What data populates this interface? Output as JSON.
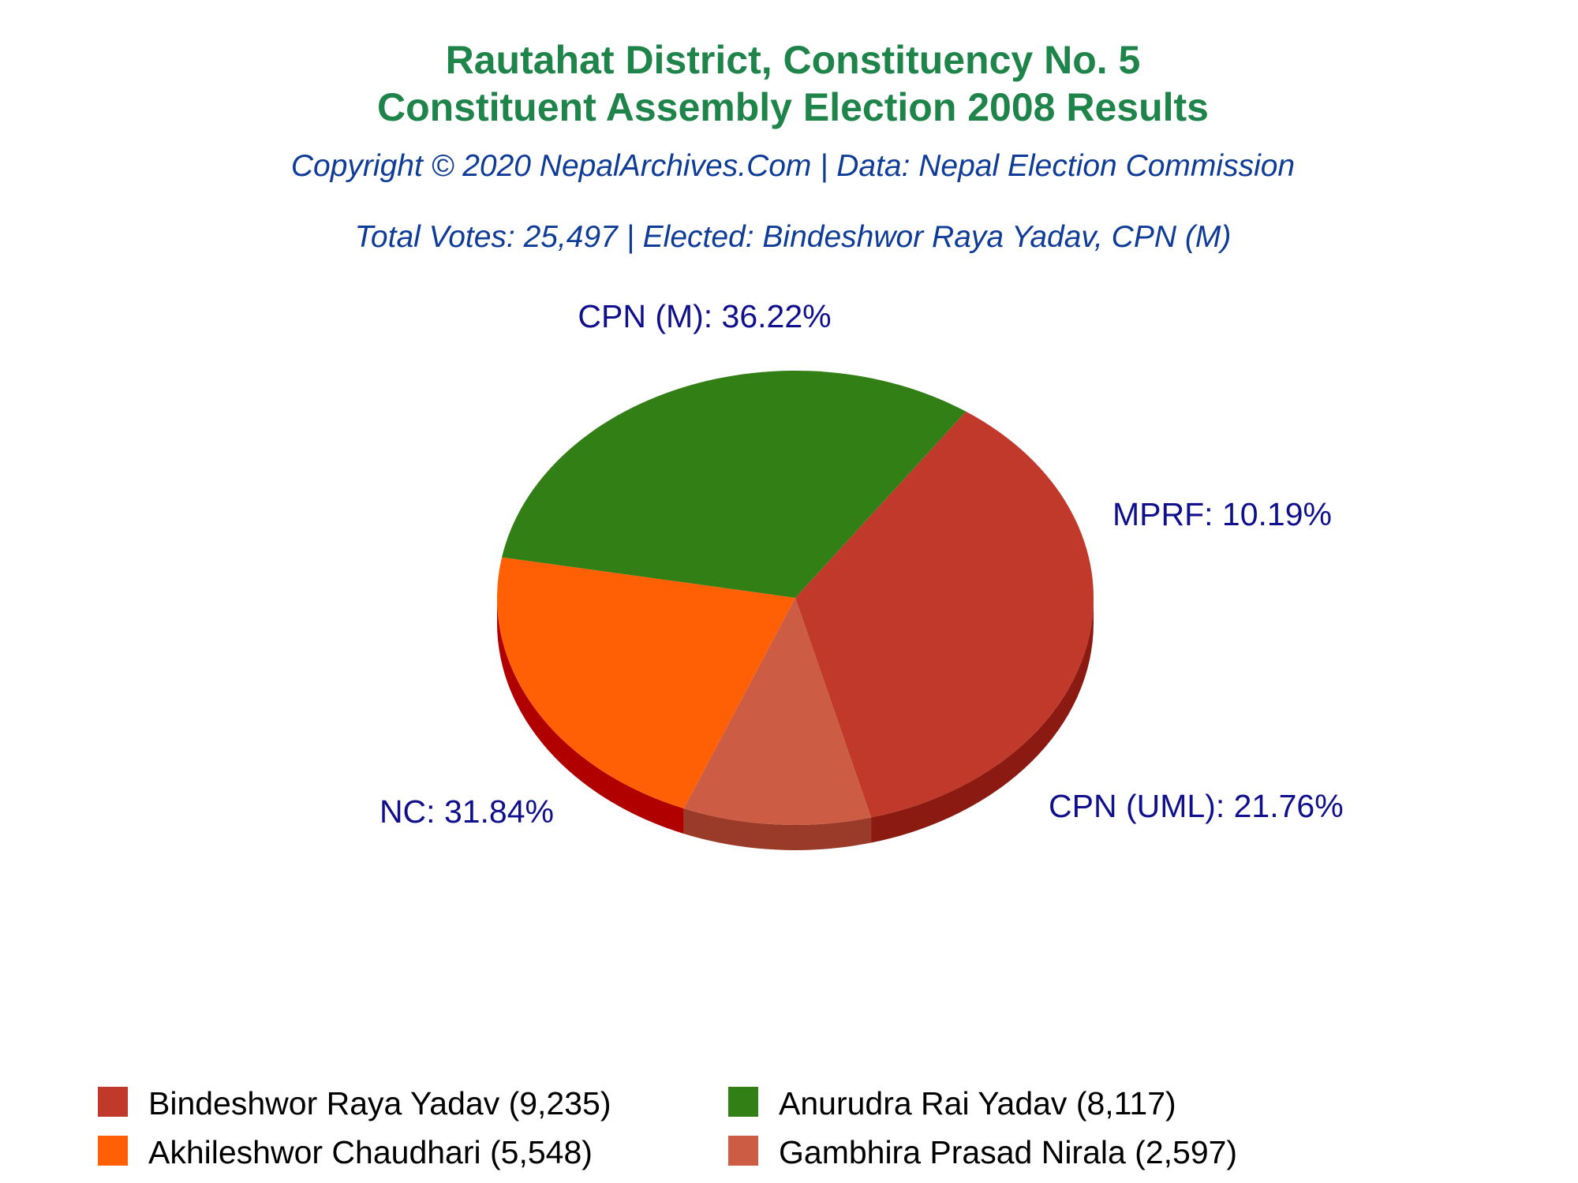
{
  "chart_data": {
    "type": "pie",
    "title_line1": "Rautahat District, Constituency No. 5",
    "title_line2": "Constituent Assembly Election 2008 Results",
    "credit": "Copyright © 2020 NepalArchives.Com | Data: Nepal Election Commission",
    "summary": "Total Votes: 25,497 | Elected: Bindeshwor Raya Yadav, CPN (M)",
    "slices": [
      {
        "party": "CPN (M)",
        "candidate": "Bindeshwor Raya Yadav",
        "votes": 9235,
        "percent": 36.22,
        "label": "CPN (M): 36.22%",
        "legend": "Bindeshwor Raya Yadav (9,235)",
        "color": "#c0392b",
        "side_color": "#8a1a12"
      },
      {
        "party": "MPRF",
        "candidate": "Gambhira Prasad Nirala",
        "votes": 2597,
        "percent": 10.19,
        "label": "MPRF: 10.19%",
        "legend": "Gambhira Prasad Nirala (2,597)",
        "color": "#cd5c45",
        "side_color": "#9a3a28"
      },
      {
        "party": "CPN (UML)",
        "candidate": "Akhileshwor Chaudhari",
        "votes": 5548,
        "percent": 21.76,
        "label": "CPN (UML): 21.76%",
        "legend": "Akhileshwor Chaudhari (5,548)",
        "color": "#ff5f05",
        "side_color": "#b00000"
      },
      {
        "party": "NC",
        "candidate": "Anurudra Rai Yadav",
        "votes": 8117,
        "percent": 31.84,
        "label": "NC: 31.84%",
        "legend": "Anurudra Rai Yadav (8,117)",
        "color": "#327f16",
        "side_color": "#0a2d00"
      }
    ],
    "legend_order": [
      "CPN (M)",
      "NC",
      "CPN (UML)",
      "MPRF"
    ]
  }
}
